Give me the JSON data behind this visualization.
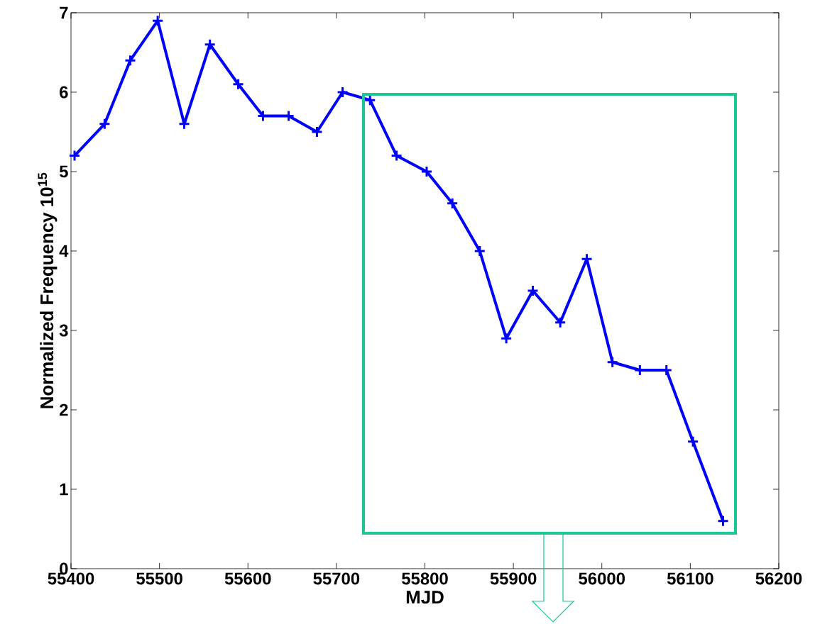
{
  "chart_data": {
    "type": "line",
    "xlabel": "MJD",
    "ylabel": "Normalized Frequency 10$^{15}$",
    "x": [
      55404,
      55438,
      55467,
      55498,
      55528,
      55557,
      55589,
      55617,
      55646,
      55678,
      55707,
      55738,
      55768,
      55802,
      55831,
      55862,
      55892,
      55922,
      55953,
      55983,
      56012,
      56043,
      56073,
      56103,
      56137
    ],
    "series": [
      {
        "color": "#0000ff",
        "values": [
          5.2,
          5.6,
          6.4,
          6.9,
          5.6,
          6.6,
          6.1,
          5.7,
          5.7,
          5.5,
          6.0,
          5.9,
          5.2,
          5.0,
          4.6,
          4.0,
          2.9,
          3.5,
          3.1,
          3.9,
          2.6,
          2.5,
          2.5,
          1.6,
          0.6
        ]
      }
    ],
    "xlim": [
      55400,
      56200
    ],
    "ylim": [
      0,
      7
    ],
    "xticks": [
      55400,
      55500,
      55600,
      55700,
      55800,
      55900,
      56000,
      56100,
      56200
    ],
    "yticks": [
      0,
      1,
      2,
      3,
      4,
      5,
      6,
      7
    ],
    "grid": false,
    "marker": "cross",
    "line_style": "solid"
  }
}
